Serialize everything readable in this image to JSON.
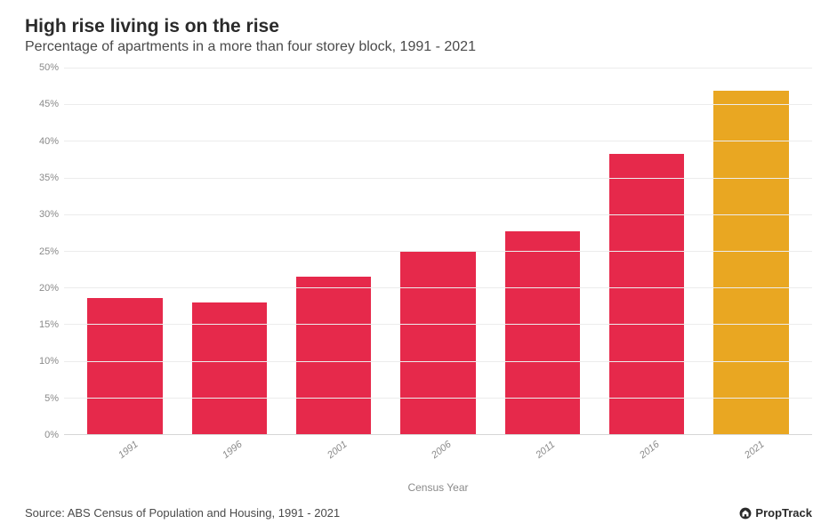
{
  "title": "High rise living is on the rise",
  "subtitle": "Percentage of apartments in a more than four storey block, 1991 - 2021",
  "x_axis_label": "Census Year",
  "source": "Source: ABS Census of Population and Housing, 1991 - 2021",
  "brand": "PropTrack",
  "chart": {
    "type": "bar",
    "categories": [
      "1991",
      "1996",
      "2001",
      "2006",
      "2011",
      "2016",
      "2021"
    ],
    "values": [
      18.6,
      18.0,
      21.5,
      25.0,
      27.7,
      38.2,
      46.8
    ],
    "bar_colors": [
      "#e6294b",
      "#e6294b",
      "#e6294b",
      "#e6294b",
      "#e6294b",
      "#e6294b",
      "#e9a722"
    ],
    "ylim": [
      0,
      50
    ],
    "ytick_step": 5,
    "ytick_suffix": "%",
    "background_color": "#ffffff",
    "grid_color": "#ececec",
    "axis_line_color": "#d6d6d6",
    "tick_font_color": "#8a8a8a",
    "tick_fontsize": 11,
    "title_fontsize": 21,
    "subtitle_fontsize": 16,
    "xlabel_fontsize": 12,
    "x_tick_rotation_deg": -38,
    "x_tick_italic": true,
    "bar_width": 0.72
  }
}
